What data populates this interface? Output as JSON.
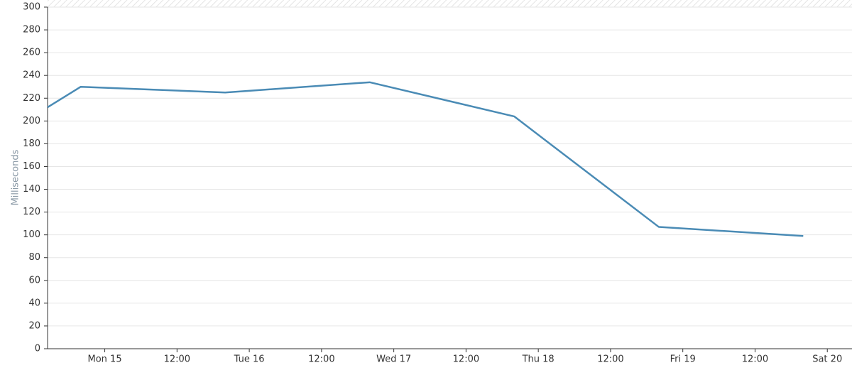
{
  "chart_data": {
    "type": "line",
    "y_label": "Milliseconds",
    "x": [
      -9.5,
      -4,
      20,
      44,
      68,
      92,
      116
    ],
    "series": [
      {
        "name": "Milliseconds",
        "color": "#4a8bb5",
        "values": [
          212,
          230,
          225,
          234,
          204,
          107,
          99
        ]
      }
    ],
    "xlim": [
      -9.5,
      124.1
    ],
    "xticks": [
      {
        "value": 0,
        "label": "Mon 15"
      },
      {
        "value": 12,
        "label": "12:00"
      },
      {
        "value": 24,
        "label": "Tue 16"
      },
      {
        "value": 36,
        "label": "12:00"
      },
      {
        "value": 48,
        "label": "Wed 17"
      },
      {
        "value": 60,
        "label": "12:00"
      },
      {
        "value": 72,
        "label": "Thu 18"
      },
      {
        "value": 84,
        "label": "12:00"
      },
      {
        "value": 96,
        "label": "Fri 19"
      },
      {
        "value": 108,
        "label": "12:00"
      },
      {
        "value": 120,
        "label": "Sat 20"
      }
    ],
    "ylim": [
      0,
      300
    ],
    "yticks": [
      0,
      20,
      40,
      60,
      80,
      100,
      120,
      140,
      160,
      180,
      200,
      220,
      240,
      260,
      280,
      300
    ],
    "grid": true
  }
}
